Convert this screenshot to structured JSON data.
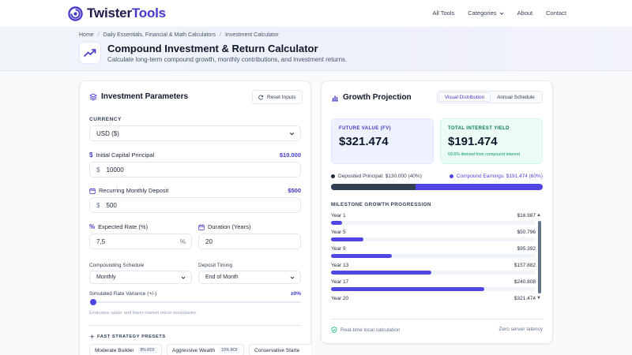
{
  "brand": {
    "name_part1": "Twister",
    "name_part2": "Tools"
  },
  "nav": {
    "items": [
      "All Tools",
      "Categories",
      "About",
      "Contact"
    ]
  },
  "breadcrumb": [
    "Home",
    "Daily Essentials, Financial & Math Calculators",
    "Investment Calculator"
  ],
  "page": {
    "title": "Compound Investment & Return Calculator",
    "subtitle": "Calculate long-term compound growth, monthly contributions, and investment returns."
  },
  "params": {
    "title": "Investment Parameters",
    "reset_label": "Reset Inputs",
    "currency_label": "CURRENCY",
    "currency_value": "USD ($)",
    "principal_label": "Initial Capital Principal",
    "principal_display": "$10.000",
    "principal_prefix": "$",
    "principal_value": "10000",
    "deposit_label": "Recurring Monthly Deposit",
    "deposit_display": "$500",
    "deposit_prefix": "$",
    "deposit_value": "500",
    "rate_label": "Expected Rate (%)",
    "rate_value": "7,5",
    "rate_suffix": "%",
    "duration_label": "Duration (Years)",
    "duration_value": "20",
    "compounding_label": "Compounding Schedule",
    "compounding_value": "Monthly",
    "timing_label": "Deposit Timing",
    "timing_value": "End of Month",
    "variance_label": "Simulated Rate Variance (+/-)",
    "variance_value": "±0%",
    "variance_hint": "Evaluates upper and lower market return boundaries.",
    "presets_label": "FAST STRATEGY PRESETS",
    "presets": [
      {
        "name": "Moderate Builder",
        "roi": "8% ROI"
      },
      {
        "name": "Aggressive Wealth",
        "roi": "10% ROI"
      },
      {
        "name": "Conservative Starte",
        "roi": ""
      }
    ]
  },
  "projection": {
    "title": "Growth Projection",
    "tabs": [
      "Visual Distribution",
      "Annual Schedule"
    ],
    "active_tab": 0,
    "fv_label": "FUTURE VALUE (FV)",
    "fv_value": "$321.474",
    "interest_label": "TOTAL INTEREST YIELD",
    "interest_value": "$191.474",
    "interest_note": "59.6% derived from compound interest",
    "deposited_legend": "Deposited Principal: $130.000 (40%)",
    "earnings_legend": "Compound Earnings: $191.474 (60%)",
    "deposited_fraction": 0.4,
    "milestones_title": "MILESTONE GROWTH PROGRESSION",
    "milestones": [
      {
        "year": "Year 1",
        "amount": "$16.987",
        "fraction": 0.053
      },
      {
        "year": "Year 5",
        "amount": "$50.796",
        "fraction": 0.158
      },
      {
        "year": "Year 9",
        "amount": "$95.392",
        "fraction": 0.297
      },
      {
        "year": "Year 13",
        "amount": "$157.882",
        "fraction": 0.491
      },
      {
        "year": "Year 17",
        "amount": "$240.808",
        "fraction": 0.749
      },
      {
        "year": "Year 20",
        "amount": "$321.474",
        "fraction": 1.0
      }
    ],
    "footer_left": "Real-time local calculation",
    "footer_right": "Zero server latency"
  },
  "colors": {
    "accent": "#4f46e5",
    "deposited": "#334155",
    "interest_green": "#059669"
  }
}
